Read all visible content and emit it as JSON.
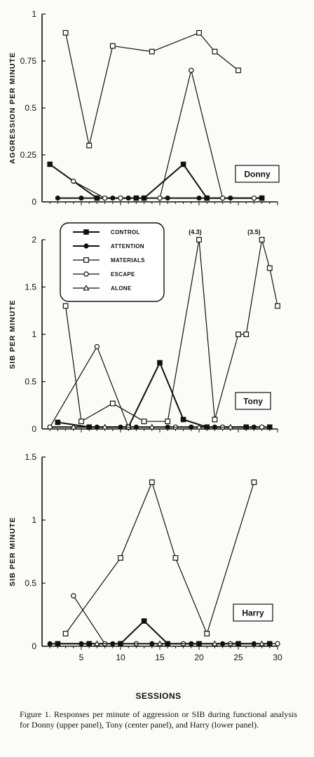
{
  "xlabel": "SESSIONS",
  "x_ticks": [
    "5",
    "10",
    "15",
    "20",
    "25",
    "30"
  ],
  "legend": [
    "CONTROL",
    "ATTENTION",
    "MATERIALS",
    "ESCAPE",
    "ALONE"
  ],
  "caption": "Figure 1.   Responses per minute of aggression or SIB during functional analysis for Donny (upper panel), Tony (center panel), and Harry (lower panel).",
  "marker_styles": {
    "CONTROL": "filled-square",
    "ATTENTION": "filled-circle",
    "MATERIALS": "open-square",
    "ESCAPE": "open-circle",
    "ALONE": "open-triangle"
  },
  "chart_data": [
    {
      "type": "line",
      "panel_label": "Donny",
      "ylabel": "AGGRESSION PER MINUTE",
      "ylim": [
        0,
        1
      ],
      "xlim": [
        0,
        30
      ],
      "y_ticks": [
        "0",
        "0.25",
        "0.5",
        "0.75",
        "1"
      ],
      "series": [
        {
          "name": "CONTROL",
          "x": [
            1,
            7,
            12,
            13,
            18,
            21,
            28
          ],
          "y": [
            0.2,
            0.02,
            0.02,
            0.02,
            0.2,
            0.02,
            0.02
          ]
        },
        {
          "name": "ATTENTION",
          "x": [
            2,
            5,
            9,
            11,
            16,
            20,
            24,
            28
          ],
          "y": [
            0.02,
            0.02,
            0.02,
            0.02,
            0.02,
            0.02,
            0.02,
            0.02
          ]
        },
        {
          "name": "MATERIALS",
          "x": [
            3,
            6,
            9,
            14,
            20,
            22,
            25
          ],
          "y": [
            0.9,
            0.3,
            0.83,
            0.8,
            0.9,
            0.8,
            0.7
          ]
        },
        {
          "name": "ESCAPE",
          "x": [
            4,
            8,
            10,
            15,
            19,
            23,
            27
          ],
          "y": [
            0.11,
            0.02,
            0.02,
            0.02,
            0.7,
            0.02,
            0.02
          ]
        },
        {
          "name": "ALONE",
          "x": [],
          "y": []
        }
      ]
    },
    {
      "type": "line",
      "panel_label": "Tony",
      "ylabel": "SIB PER MINUTE",
      "ylim": [
        0,
        2
      ],
      "xlim": [
        0,
        30
      ],
      "y_ticks": [
        "0",
        "0.5",
        "1",
        "1.5",
        "2"
      ],
      "annotations": [
        {
          "text": "(4.3)",
          "x": 19.5,
          "y": 2
        },
        {
          "text": "(3.5)",
          "x": 27,
          "y": 2
        }
      ],
      "series": [
        {
          "name": "CONTROL",
          "x": [
            2,
            6,
            11,
            15,
            18,
            21,
            26,
            29
          ],
          "y": [
            0.07,
            0.02,
            0.02,
            0.7,
            0.1,
            0.02,
            0.02,
            0.02
          ]
        },
        {
          "name": "ATTENTION",
          "x": [
            1,
            7,
            10,
            12,
            16,
            19,
            22,
            27
          ],
          "y": [
            0.02,
            0.02,
            0.02,
            0.02,
            0.02,
            0.02,
            0.02,
            0.02
          ]
        },
        {
          "name": "MATERIALS",
          "x": [
            3,
            5,
            9,
            13,
            16,
            20,
            22,
            25,
            26,
            28,
            29,
            30
          ],
          "y": [
            1.3,
            0.08,
            0.27,
            0.08,
            0.08,
            2,
            0.1,
            1,
            1,
            2,
            1.7,
            1.3
          ]
        },
        {
          "name": "ESCAPE",
          "x": [
            1,
            7,
            11,
            17,
            23,
            28
          ],
          "y": [
            0.02,
            0.87,
            0.02,
            0.02,
            0.02,
            0.02
          ]
        },
        {
          "name": "ALONE",
          "x": [
            4,
            8,
            14,
            20,
            24
          ],
          "y": [
            0.02,
            0.02,
            0.02,
            0.02,
            0.02
          ]
        }
      ]
    },
    {
      "type": "line",
      "panel_label": "Harry",
      "ylabel": "SIB PER MINUTE",
      "ylim": [
        0,
        1.5
      ],
      "xlim": [
        0,
        30
      ],
      "y_ticks": [
        "0",
        "0.5",
        "1",
        "1.5"
      ],
      "series": [
        {
          "name": "CONTROL",
          "x": [
            2,
            6,
            10,
            13,
            16,
            20,
            25,
            29
          ],
          "y": [
            0.02,
            0.02,
            0.02,
            0.2,
            0.02,
            0.02,
            0.02,
            0.02
          ]
        },
        {
          "name": "ATTENTION",
          "x": [
            1,
            5,
            9,
            14,
            19,
            23,
            27
          ],
          "y": [
            0.02,
            0.02,
            0.02,
            0.02,
            0.02,
            0.02,
            0.02
          ]
        },
        {
          "name": "MATERIALS",
          "x": [
            3,
            10,
            14,
            17,
            21,
            27
          ],
          "y": [
            0.1,
            0.7,
            1.3,
            0.7,
            0.1,
            1.3
          ]
        },
        {
          "name": "ESCAPE",
          "x": [
            4,
            8,
            12,
            18,
            24,
            30
          ],
          "y": [
            0.4,
            0.02,
            0.02,
            0.02,
            0.02,
            0.02
          ]
        },
        {
          "name": "ALONE",
          "x": [
            7,
            15,
            22,
            28
          ],
          "y": [
            0.02,
            0.02,
            0.02,
            0.02
          ]
        }
      ]
    }
  ]
}
